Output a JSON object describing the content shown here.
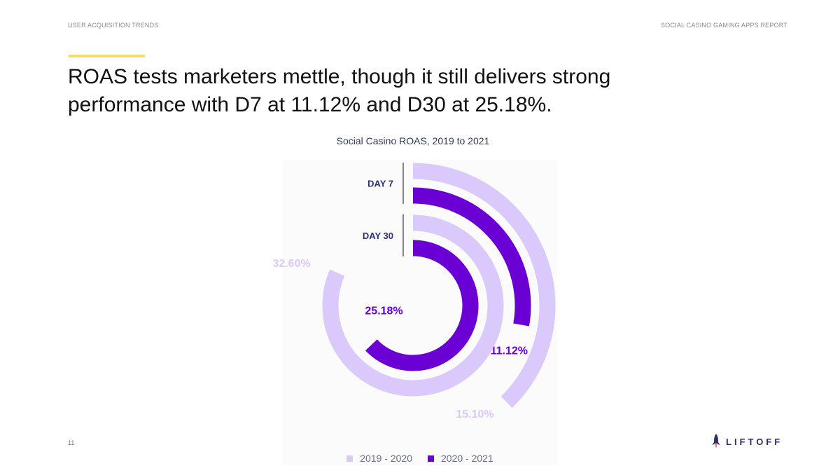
{
  "header": {
    "section": "USER ACQUISITION TRENDS",
    "report": "SOCIAL CASINO GAMING APPS REPORT"
  },
  "title": {
    "line1": "ROAS tests marketers mettle, though it still delivers strong",
    "line2": "performance with D7 at 11.12% and D30 at 25.18%."
  },
  "colors": {
    "accent": "#f5dc6a",
    "series_light": "#dacafc",
    "series_dark": "#6a00d4",
    "axis_label": "#2e2f7a",
    "text_dark": "#111111"
  },
  "chart_data": {
    "type": "radial-bar",
    "title": "Social Casino ROAS, 2019 to 2021",
    "groups": [
      {
        "name": "DAY 7",
        "series": [
          {
            "name": "2019 - 2020",
            "value": 15.1,
            "label": "15.10%"
          },
          {
            "name": "2020 - 2021",
            "value": 11.12,
            "label": "11.12%"
          }
        ]
      },
      {
        "name": "DAY 30",
        "series": [
          {
            "name": "2019 - 2020",
            "value": 32.6,
            "label": "32.60%"
          },
          {
            "name": "2020 - 2021",
            "value": 25.18,
            "label": "25.18%"
          }
        ]
      }
    ],
    "scale_max": 40,
    "legend": [
      "2019 - 2020",
      "2020 - 2021"
    ],
    "legend_position": "bottom"
  },
  "footer": {
    "page_number": "11",
    "logo_text": "LIFTOFF"
  }
}
